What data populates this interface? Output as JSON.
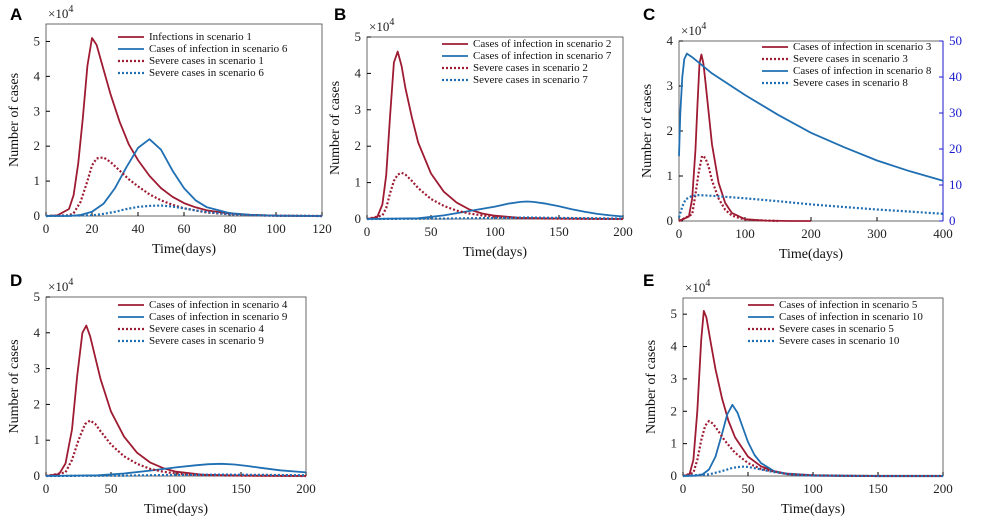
{
  "colors": {
    "red": "#9e1b32",
    "blue": "#1f6fb2",
    "right_axis": "#1a1acd"
  },
  "chart_data": [
    {
      "panel": "A",
      "type": "line",
      "xlabel": "Time(days)",
      "ylabel": "Number of cases",
      "y_multiplier": "×10",
      "y_exponent": "4",
      "xlim": [
        0,
        120
      ],
      "ylim": [
        0,
        5.5
      ],
      "xticks": [
        0,
        20,
        40,
        60,
        80,
        100,
        120
      ],
      "yticks": [
        0,
        1,
        2,
        3,
        4,
        5
      ],
      "series": [
        {
          "name": "Infections in scenario 1",
          "color": "red",
          "style": "solid",
          "x": [
            0,
            5,
            10,
            12,
            14,
            16,
            18,
            20,
            22,
            25,
            28,
            32,
            36,
            40,
            45,
            50,
            55,
            60,
            65,
            70,
            80,
            90,
            100,
            120
          ],
          "y": [
            0,
            0.02,
            0.2,
            0.6,
            1.5,
            2.8,
            4.3,
            5.1,
            4.9,
            4.2,
            3.5,
            2.7,
            2.05,
            1.6,
            1.15,
            0.8,
            0.55,
            0.37,
            0.25,
            0.16,
            0.07,
            0.03,
            0.01,
            0
          ]
        },
        {
          "name": "Cases of infection in scenario 6",
          "color": "blue",
          "style": "solid",
          "x": [
            0,
            10,
            15,
            20,
            25,
            30,
            35,
            40,
            45,
            50,
            55,
            60,
            65,
            70,
            80,
            90,
            100,
            120
          ],
          "y": [
            0,
            0,
            0.03,
            0.12,
            0.35,
            0.8,
            1.4,
            1.95,
            2.2,
            1.9,
            1.3,
            0.8,
            0.45,
            0.25,
            0.08,
            0.03,
            0.01,
            0
          ]
        },
        {
          "name": "Severe cases in scenario 1",
          "color": "red",
          "style": "dotted",
          "x": [
            0,
            10,
            12,
            15,
            18,
            20,
            22,
            25,
            28,
            32,
            36,
            40,
            45,
            50,
            55,
            60,
            70,
            80,
            90,
            100,
            120
          ],
          "y": [
            0,
            0.02,
            0.08,
            0.4,
            1.0,
            1.45,
            1.65,
            1.68,
            1.55,
            1.3,
            1.05,
            0.85,
            0.62,
            0.45,
            0.32,
            0.22,
            0.1,
            0.05,
            0.02,
            0.01,
            0
          ]
        },
        {
          "name": "Severe cases in scenario 6",
          "color": "blue",
          "style": "dotted",
          "x": [
            0,
            20,
            25,
            30,
            35,
            40,
            45,
            50,
            55,
            60,
            65,
            70,
            80,
            90,
            100,
            120
          ],
          "y": [
            0,
            0.02,
            0.06,
            0.12,
            0.2,
            0.26,
            0.29,
            0.3,
            0.27,
            0.22,
            0.16,
            0.11,
            0.05,
            0.02,
            0.01,
            0
          ]
        }
      ]
    },
    {
      "panel": "B",
      "type": "line",
      "xlabel": "Time(days)",
      "ylabel": "Number of cases",
      "y_multiplier": "×10",
      "y_exponent": "4",
      "xlim": [
        0,
        200
      ],
      "ylim": [
        0,
        5
      ],
      "xticks": [
        0,
        50,
        100,
        150,
        200
      ],
      "yticks": [
        0,
        1,
        2,
        3,
        4,
        5
      ],
      "series": [
        {
          "name": "Cases of infection in scenario 2",
          "color": "red",
          "style": "solid",
          "x": [
            0,
            8,
            12,
            15,
            18,
            21,
            24,
            27,
            30,
            35,
            40,
            50,
            60,
            70,
            80,
            90,
            100,
            120,
            150,
            200
          ],
          "y": [
            0,
            0.05,
            0.4,
            1.2,
            2.8,
            4.3,
            4.6,
            4.2,
            3.6,
            2.8,
            2.1,
            1.25,
            0.75,
            0.45,
            0.26,
            0.15,
            0.09,
            0.03,
            0.01,
            0
          ]
        },
        {
          "name": "Cases of infection in scenario 7",
          "color": "blue",
          "style": "solid",
          "x": [
            0,
            40,
            60,
            80,
            100,
            110,
            120,
            125,
            130,
            140,
            150,
            160,
            170,
            180,
            190,
            200
          ],
          "y": [
            0,
            0.02,
            0.1,
            0.22,
            0.34,
            0.42,
            0.47,
            0.48,
            0.47,
            0.42,
            0.35,
            0.27,
            0.2,
            0.14,
            0.1,
            0.07
          ]
        },
        {
          "name": "Severe cases in scenario 2",
          "color": "red",
          "style": "dotted",
          "x": [
            0,
            12,
            15,
            18,
            21,
            24,
            27,
            30,
            35,
            40,
            50,
            60,
            70,
            80,
            90,
            100,
            120,
            150,
            200
          ],
          "y": [
            0,
            0.1,
            0.3,
            0.7,
            1.05,
            1.22,
            1.27,
            1.22,
            1.05,
            0.85,
            0.55,
            0.36,
            0.23,
            0.15,
            0.1,
            0.06,
            0.02,
            0.01,
            0
          ]
        },
        {
          "name": "Severe cases in scenario 7",
          "color": "blue",
          "style": "dotted",
          "x": [
            0,
            60,
            100,
            125,
            150,
            200
          ],
          "y": [
            0,
            0.01,
            0.03,
            0.04,
            0.03,
            0.01
          ]
        }
      ]
    },
    {
      "panel": "C",
      "type": "line",
      "xlabel": "Time(days)",
      "ylabel": "Number of cases",
      "y_multiplier": "×10",
      "y_exponent": "4",
      "xlim": [
        0,
        400
      ],
      "ylim": [
        0,
        4
      ],
      "xticks": [
        0,
        100,
        200,
        300,
        400
      ],
      "yticks": [
        0,
        1,
        2,
        3,
        4
      ],
      "y2lim": [
        0,
        50
      ],
      "y2ticks": [
        0,
        10,
        20,
        30,
        40,
        50
      ],
      "series": [
        {
          "name": "Cases of infection in scenario 3",
          "color": "red",
          "style": "solid",
          "x": [
            0,
            15,
            20,
            25,
            28,
            31,
            34,
            37,
            40,
            45,
            50,
            60,
            70,
            80,
            100,
            130,
            170,
            200
          ],
          "y": [
            0,
            0.1,
            0.5,
            1.6,
            2.6,
            3.5,
            3.7,
            3.5,
            3.1,
            2.4,
            1.7,
            0.85,
            0.4,
            0.18,
            0.04,
            0.01,
            0,
            0
          ]
        },
        {
          "name": "Severe cases in scenario 3",
          "color": "red",
          "style": "dotted",
          "x": [
            0,
            20,
            25,
            30,
            35,
            40,
            45,
            50,
            60,
            70,
            80,
            100,
            150
          ],
          "y": [
            0,
            0.15,
            0.6,
            1.1,
            1.45,
            1.4,
            1.2,
            0.9,
            0.5,
            0.25,
            0.12,
            0.03,
            0
          ]
        },
        {
          "name": "Cases of infection in scenario 8",
          "color": "blue",
          "style": "solid",
          "axis": "right",
          "x": [
            0,
            2,
            5,
            8,
            12,
            20,
            30,
            50,
            100,
            150,
            200,
            250,
            300,
            350,
            400
          ],
          "y": [
            18,
            30,
            40,
            45,
            46.5,
            45.5,
            44,
            41,
            35,
            29.5,
            24.5,
            20.5,
            16.8,
            13.8,
            11.2
          ]
        },
        {
          "name": "Severe cases in scenario 8",
          "color": "blue",
          "style": "dotted",
          "axis": "right",
          "x": [
            0,
            5,
            10,
            20,
            30,
            50,
            100,
            150,
            200,
            250,
            300,
            350,
            400
          ],
          "y": [
            1,
            4,
            6,
            7,
            7.2,
            7,
            6.3,
            5.5,
            4.6,
            3.9,
            3.2,
            2.6,
            2
          ]
        }
      ]
    },
    {
      "panel": "D",
      "type": "line",
      "xlabel": "Time(days)",
      "ylabel": "Number of cases",
      "y_multiplier": "×10",
      "y_exponent": "4",
      "xlim": [
        0,
        200
      ],
      "ylim": [
        0,
        5
      ],
      "xticks": [
        0,
        50,
        100,
        150,
        200
      ],
      "yticks": [
        0,
        1,
        2,
        3,
        4,
        5
      ],
      "series": [
        {
          "name": "Cases of infection in scenario 4",
          "color": "red",
          "style": "solid",
          "x": [
            0,
            10,
            15,
            20,
            24,
            28,
            31,
            34,
            38,
            42,
            50,
            60,
            70,
            80,
            90,
            100,
            120,
            150,
            200
          ],
          "y": [
            0,
            0.05,
            0.35,
            1.3,
            2.8,
            4.0,
            4.2,
            3.9,
            3.3,
            2.7,
            1.8,
            1.1,
            0.65,
            0.38,
            0.22,
            0.12,
            0.04,
            0.01,
            0
          ]
        },
        {
          "name": "Cases of infection in scenario 9",
          "color": "blue",
          "style": "solid",
          "x": [
            0,
            40,
            60,
            80,
            100,
            115,
            125,
            135,
            145,
            155,
            165,
            180,
            200
          ],
          "y": [
            0,
            0.02,
            0.07,
            0.15,
            0.24,
            0.3,
            0.33,
            0.34,
            0.32,
            0.28,
            0.23,
            0.16,
            0.1
          ]
        },
        {
          "name": "Severe cases in scenario 4",
          "color": "red",
          "style": "dotted",
          "x": [
            0,
            15,
            20,
            25,
            30,
            34,
            38,
            42,
            50,
            60,
            70,
            80,
            90,
            100,
            120,
            150,
            200
          ],
          "y": [
            0,
            0.1,
            0.45,
            1.0,
            1.45,
            1.55,
            1.45,
            1.25,
            0.88,
            0.55,
            0.34,
            0.2,
            0.12,
            0.07,
            0.02,
            0.01,
            0
          ]
        },
        {
          "name": "Severe cases in scenario 9",
          "color": "blue",
          "style": "dotted",
          "x": [
            0,
            60,
            100,
            135,
            170,
            200
          ],
          "y": [
            0,
            0.01,
            0.03,
            0.04,
            0.03,
            0.02
          ]
        }
      ]
    },
    {
      "panel": "E",
      "type": "line",
      "xlabel": "Time(days)",
      "ylabel": "Number of cases",
      "y_multiplier": "×10",
      "y_exponent": "4",
      "xlim": [
        0,
        200
      ],
      "ylim": [
        0,
        5.5
      ],
      "xticks": [
        0,
        50,
        100,
        150,
        200
      ],
      "yticks": [
        0,
        1,
        2,
        3,
        4,
        5
      ],
      "series": [
        {
          "name": "Cases of infection in scenario 5",
          "color": "red",
          "style": "solid",
          "x": [
            0,
            5,
            8,
            11,
            14,
            16,
            18,
            21,
            25,
            30,
            35,
            40,
            50,
            60,
            70,
            80,
            100,
            130,
            200
          ],
          "y": [
            0,
            0.05,
            0.5,
            2.0,
            4.2,
            5.1,
            4.9,
            4.2,
            3.3,
            2.4,
            1.7,
            1.2,
            0.6,
            0.3,
            0.15,
            0.07,
            0.02,
            0,
            0
          ]
        },
        {
          "name": "Cases of infection in scenario 10",
          "color": "blue",
          "style": "solid",
          "x": [
            0,
            10,
            15,
            20,
            25,
            30,
            34,
            38,
            42,
            46,
            50,
            55,
            60,
            70,
            80,
            90,
            100,
            130,
            200
          ],
          "y": [
            0,
            0.01,
            0.05,
            0.2,
            0.6,
            1.3,
            1.9,
            2.2,
            1.95,
            1.5,
            1.05,
            0.65,
            0.4,
            0.15,
            0.06,
            0.02,
            0.01,
            0,
            0
          ]
        },
        {
          "name": "Severe cases in scenario 5",
          "color": "red",
          "style": "dotted",
          "x": [
            0,
            8,
            11,
            14,
            17,
            20,
            23,
            27,
            32,
            40,
            50,
            60,
            80,
            100,
            150,
            200
          ],
          "y": [
            0,
            0.1,
            0.5,
            1.1,
            1.55,
            1.7,
            1.62,
            1.4,
            1.1,
            0.72,
            0.4,
            0.22,
            0.06,
            0.02,
            0,
            0
          ]
        },
        {
          "name": "Severe cases in scenario 10",
          "color": "blue",
          "style": "dotted",
          "x": [
            0,
            20,
            30,
            38,
            45,
            50,
            55,
            60,
            70,
            80,
            100,
            150,
            200
          ],
          "y": [
            0,
            0.05,
            0.15,
            0.25,
            0.29,
            0.28,
            0.24,
            0.2,
            0.12,
            0.07,
            0.02,
            0,
            0
          ]
        }
      ]
    }
  ]
}
